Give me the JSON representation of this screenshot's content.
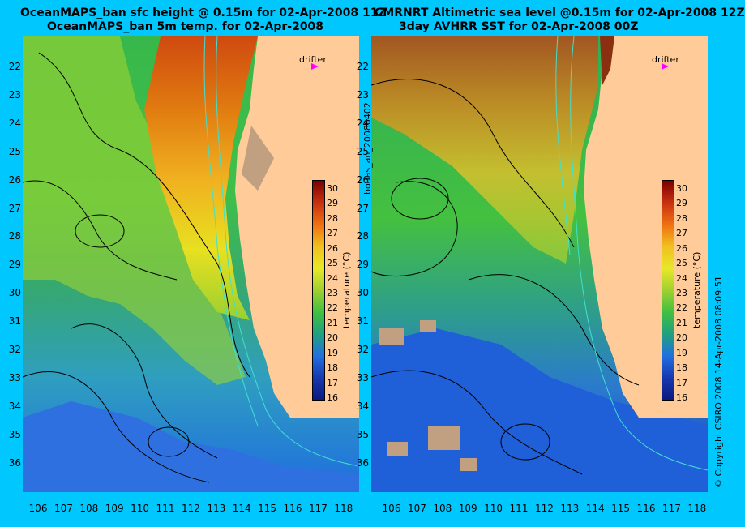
{
  "left_panel": {
    "title_line1": "OceanMAPS_ban sfc height @ 0.15m for 02-Apr-2008 11Z",
    "title_line2": "OceanMAPS_ban 5m temp. for 02-Apr-2008",
    "drifter_label": "drifter"
  },
  "right_panel": {
    "title_line1": "CMRNRT Altimetric sea level  @0.15m  for 02-Apr-2008 12Z",
    "title_line2": "3day AVHRR SST for 02-Apr-2008 00Z",
    "drifter_label": "drifter"
  },
  "colorbar": {
    "label": "temperature (°C)",
    "ticks": [
      "30",
      "29",
      "28",
      "27",
      "26",
      "25",
      "24",
      "23",
      "22",
      "21",
      "20",
      "19",
      "18",
      "17",
      "16"
    ],
    "range": [
      16,
      30
    ]
  },
  "axes": {
    "y_ticks": [
      "22",
      "23",
      "24",
      "25",
      "26",
      "27",
      "28",
      "29",
      "30",
      "31",
      "32",
      "33",
      "34",
      "35",
      "36"
    ],
    "x_ticks": [
      "106",
      "107",
      "108",
      "109",
      "110",
      "111",
      "112",
      "113",
      "114",
      "115",
      "116",
      "117",
      "118"
    ]
  },
  "side_text": {
    "middle": "bodas_an_20080402",
    "right": "© Copyright CSIRO 2008   14-Apr-2008 08:09:51"
  },
  "colors": {
    "background": "#00c8ff",
    "land": "#ffcc99",
    "drifter": "#ff00ff",
    "contour": "#000000",
    "isobath": "#40e0d0"
  }
}
